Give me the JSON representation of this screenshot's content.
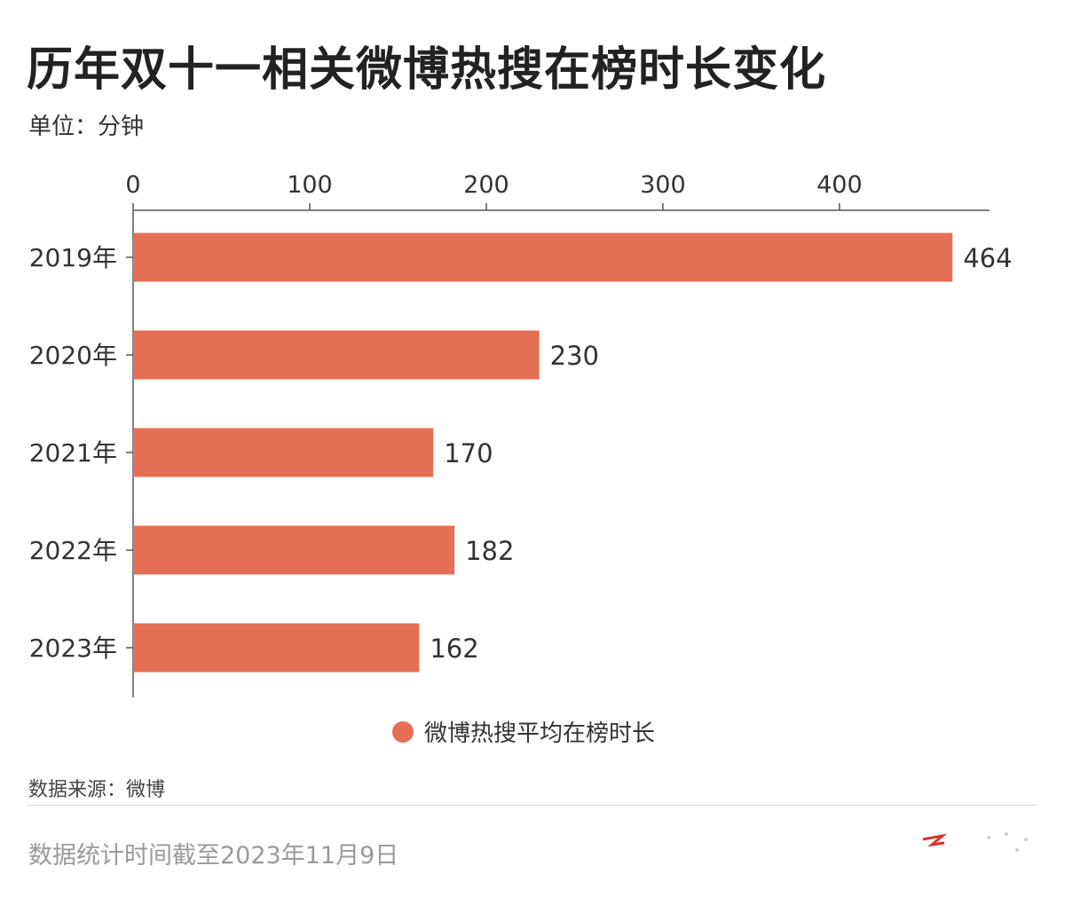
{
  "title": "历年双十一相关微博热搜在榜时长变化",
  "unit_label": "单位：分钟",
  "legend_label": "微博热搜平均在榜时长",
  "source": "数据来源：微博",
  "footnote": "数据统计时间截至2023年11月9日",
  "bar_color": "#E56F55",
  "chart_data": {
    "type": "bar",
    "orientation": "horizontal",
    "categories": [
      "2019年",
      "2020年",
      "2021年",
      "2022年",
      "2023年"
    ],
    "series": [
      {
        "name": "微博热搜平均在榜时长",
        "values": [
          464,
          230,
          170,
          182,
          162
        ]
      }
    ],
    "xlim": [
      0,
      485
    ],
    "xticks": [
      0,
      100,
      200,
      300,
      400
    ],
    "x_axis_position": "top",
    "grid": false,
    "legend_position": "bottom-center",
    "data_labels": true
  }
}
